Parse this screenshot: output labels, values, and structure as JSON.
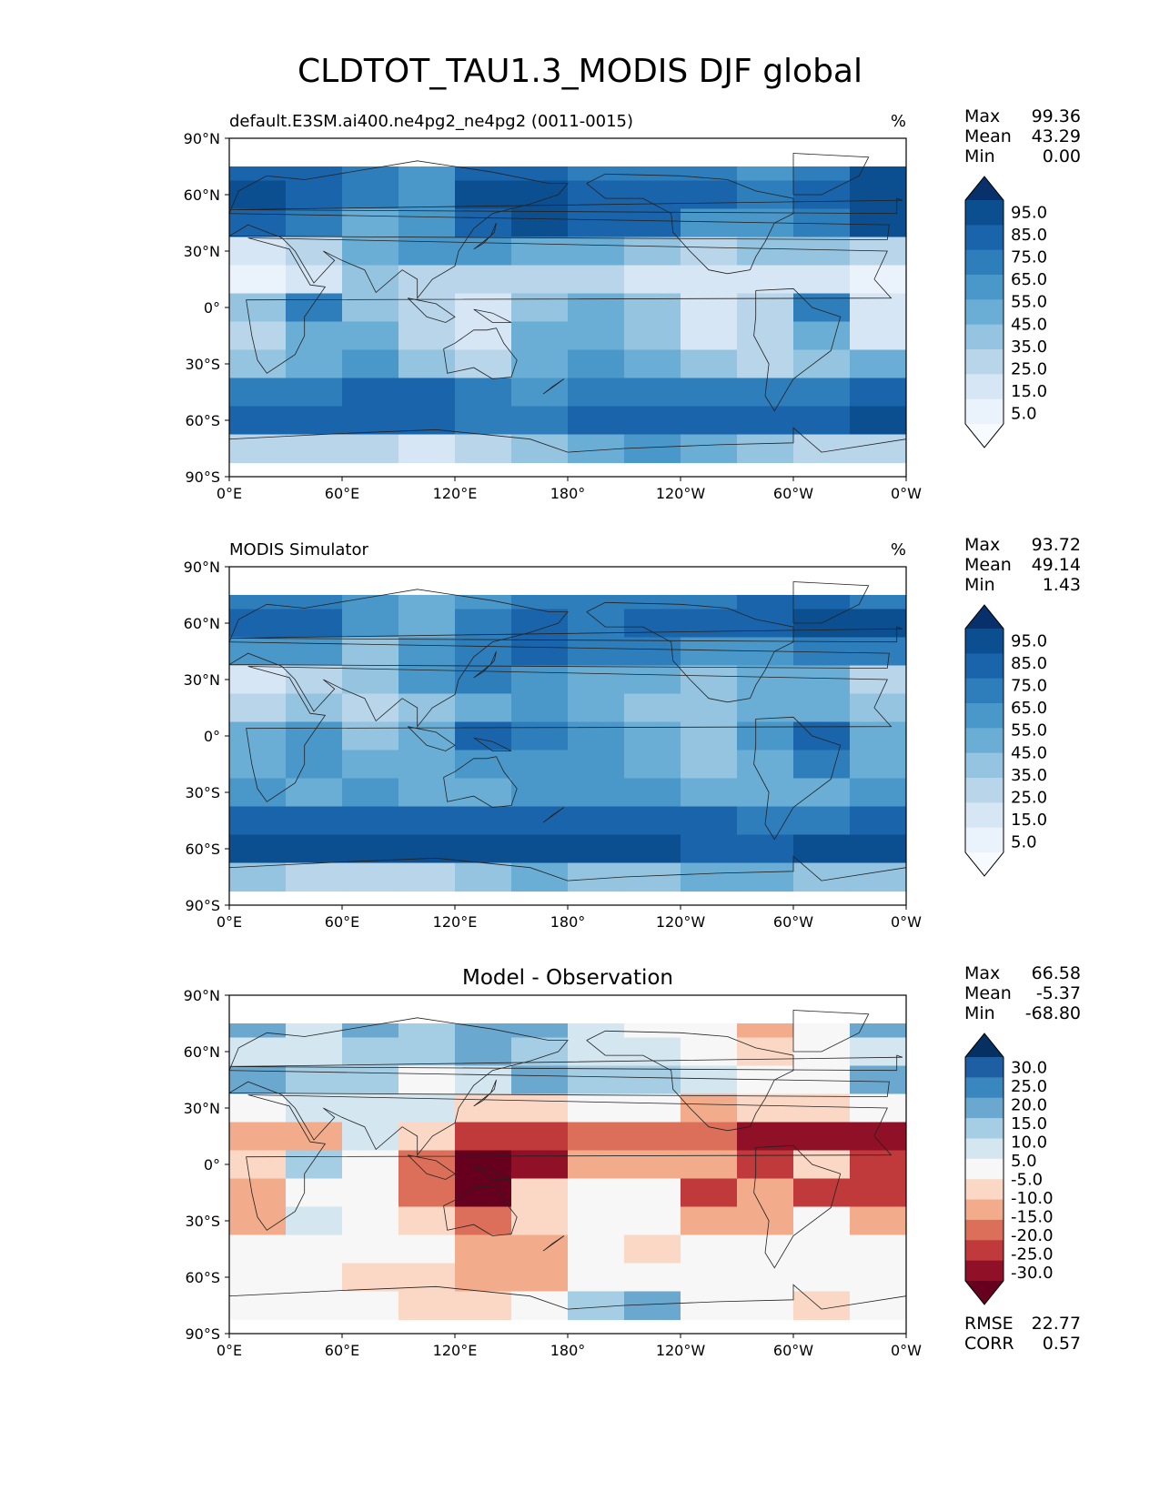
{
  "figure": {
    "title": "CLDTOT_TAU1.3_MODIS DJF global"
  },
  "panels": [
    {
      "id": "model",
      "title_left": "default.E3SM.ai400.ne4pg2_ne4pg2 (0011-0015)",
      "title_center": "",
      "units": "%",
      "stats": [
        {
          "label": "Max",
          "value": "99.36"
        },
        {
          "label": "Mean",
          "value": "43.29"
        },
        {
          "label": "Min",
          "value": "0.00"
        }
      ],
      "colorbar": {
        "levels": [
          "95.0",
          "85.0",
          "75.0",
          "65.0",
          "55.0",
          "45.0",
          "35.0",
          "25.0",
          "15.0",
          "5.0"
        ],
        "colors": [
          "#08306b",
          "#0b4f91",
          "#1a64ab",
          "#2f7ebc",
          "#4a98c9",
          "#6aaed6",
          "#94c4df",
          "#b8d5ea",
          "#d6e6f4",
          "#eaf2fb",
          "#f7fbff"
        ]
      }
    },
    {
      "id": "obs",
      "title_left": "MODIS Simulator",
      "title_center": "",
      "units": "%",
      "stats": [
        {
          "label": "Max",
          "value": "93.72"
        },
        {
          "label": "Mean",
          "value": "49.14"
        },
        {
          "label": "Min",
          "value": "1.43"
        }
      ],
      "colorbar": {
        "levels": [
          "95.0",
          "85.0",
          "75.0",
          "65.0",
          "55.0",
          "45.0",
          "35.0",
          "25.0",
          "15.0",
          "5.0"
        ],
        "colors": [
          "#08306b",
          "#0b4f91",
          "#1a64ab",
          "#2f7ebc",
          "#4a98c9",
          "#6aaed6",
          "#94c4df",
          "#b8d5ea",
          "#d6e6f4",
          "#eaf2fb",
          "#f7fbff"
        ]
      }
    },
    {
      "id": "diff",
      "title_left": "",
      "title_center": "Model - Observation",
      "units": "",
      "stats": [
        {
          "label": "Max",
          "value": "66.58"
        },
        {
          "label": "Mean",
          "value": "-5.37"
        },
        {
          "label": "Min",
          "value": "-68.80"
        }
      ],
      "colorbar": {
        "levels": [
          "30.0",
          "25.0",
          "20.0",
          "15.0",
          "10.0",
          "5.0",
          "-5.0",
          "-10.0",
          "-15.0",
          "-20.0",
          "-25.0",
          "-30.0"
        ],
        "colors": [
          "#053061",
          "#1d5fa2",
          "#3a87bf",
          "#6aa8d0",
          "#a5cde3",
          "#d4e6f0",
          "#f7f7f7",
          "#fbd8c6",
          "#f3ac8b",
          "#dc6f5a",
          "#c0393b",
          "#8f1027",
          "#67001f"
        ]
      },
      "metrics": [
        {
          "label": "RMSE",
          "value": "22.77"
        },
        {
          "label": "CORR",
          "value": "0.57"
        }
      ]
    }
  ],
  "axes": {
    "xticks": [
      "0°E",
      "60°E",
      "120°E",
      "180°",
      "120°W",
      "60°W",
      "0°W"
    ],
    "yticks": [
      "90°N",
      "60°N",
      "30°N",
      "0°",
      "30°S",
      "60°S",
      "90°S"
    ]
  },
  "chart_data": [
    {
      "type": "heatmap",
      "title": "default.E3SM.ai400.ne4pg2_ne4pg2 (0011-0015)",
      "units": "%",
      "xlim": [
        0,
        360
      ],
      "ylim": [
        -90,
        90
      ],
      "levels": [
        5,
        15,
        25,
        35,
        45,
        55,
        65,
        75,
        85,
        95
      ],
      "lat": [
        75,
        60,
        45,
        30,
        15,
        0,
        -15,
        -30,
        -45,
        -60,
        -75
      ],
      "lon": [
        0,
        30,
        60,
        90,
        120,
        150,
        180,
        210,
        240,
        270,
        300,
        330
      ],
      "values": [
        [
          80,
          75,
          70,
          60,
          75,
          80,
          70,
          70,
          65,
          60,
          70,
          85
        ],
        [
          85,
          80,
          65,
          55,
          85,
          85,
          75,
          80,
          75,
          70,
          80,
          90
        ],
        [
          75,
          65,
          50,
          55,
          75,
          90,
          80,
          75,
          60,
          55,
          70,
          85
        ],
        [
          20,
          30,
          45,
          60,
          55,
          45,
          45,
          40,
          25,
          35,
          40,
          30
        ],
        [
          10,
          20,
          35,
          30,
          25,
          30,
          25,
          20,
          15,
          20,
          20,
          10
        ],
        [
          40,
          70,
          40,
          25,
          20,
          40,
          45,
          35,
          20,
          30,
          65,
          20
        ],
        [
          30,
          50,
          45,
          30,
          20,
          45,
          50,
          40,
          15,
          30,
          45,
          20
        ],
        [
          40,
          50,
          55,
          40,
          30,
          45,
          55,
          50,
          35,
          30,
          40,
          45
        ],
        [
          70,
          70,
          75,
          75,
          65,
          60,
          70,
          65,
          70,
          65,
          70,
          80
        ],
        [
          80,
          80,
          80,
          75,
          70,
          70,
          80,
          80,
          75,
          80,
          80,
          85
        ],
        [
          30,
          25,
          25,
          20,
          30,
          40,
          50,
          55,
          45,
          40,
          30,
          30
        ]
      ]
    },
    {
      "type": "heatmap",
      "title": "MODIS Simulator",
      "units": "%",
      "xlim": [
        0,
        360
      ],
      "ylim": [
        -90,
        90
      ],
      "levels": [
        5,
        15,
        25,
        35,
        45,
        55,
        65,
        75,
        85,
        95
      ],
      "lat": [
        75,
        60,
        45,
        30,
        15,
        0,
        -15,
        -30,
        -45,
        -60,
        -75
      ],
      "lon": [
        0,
        30,
        60,
        90,
        120,
        150,
        180,
        210,
        240,
        270,
        300,
        330
      ],
      "values": [
        [
          65,
          70,
          55,
          50,
          60,
          65,
          65,
          70,
          70,
          75,
          75,
          70
        ],
        [
          80,
          75,
          55,
          45,
          70,
          75,
          70,
          75,
          80,
          80,
          85,
          85
        ],
        [
          60,
          55,
          40,
          60,
          70,
          75,
          70,
          65,
          55,
          60,
          70,
          70
        ],
        [
          20,
          25,
          40,
          55,
          65,
          55,
          45,
          45,
          40,
          45,
          50,
          30
        ],
        [
          25,
          35,
          30,
          40,
          50,
          55,
          45,
          40,
          35,
          50,
          50,
          40
        ],
        [
          45,
          60,
          40,
          45,
          80,
          70,
          60,
          50,
          35,
          55,
          75,
          45
        ],
        [
          45,
          55,
          50,
          50,
          55,
          55,
          55,
          45,
          40,
          45,
          70,
          45
        ],
        [
          55,
          45,
          55,
          50,
          50,
          55,
          55,
          55,
          50,
          45,
          45,
          60
        ],
        [
          75,
          75,
          80,
          80,
          80,
          75,
          75,
          75,
          75,
          70,
          70,
          80
        ],
        [
          85,
          85,
          90,
          85,
          85,
          85,
          85,
          85,
          80,
          80,
          85,
          90
        ],
        [
          35,
          30,
          25,
          30,
          40,
          45,
          40,
          40,
          45,
          45,
          40,
          35
        ]
      ]
    },
    {
      "type": "heatmap",
      "title": "Model - Observation",
      "units": "",
      "xlim": [
        0,
        360
      ],
      "ylim": [
        -90,
        90
      ],
      "levels": [
        -30,
        -25,
        -20,
        -15,
        -10,
        -5,
        5,
        10,
        15,
        20,
        25,
        30
      ],
      "lat": [
        75,
        60,
        45,
        30,
        15,
        0,
        -15,
        -30,
        -45,
        -60,
        -75
      ],
      "lon": [
        0,
        30,
        60,
        90,
        120,
        150,
        180,
        210,
        240,
        270,
        300,
        330
      ],
      "values": [
        [
          15,
          5,
          15,
          10,
          15,
          15,
          5,
          0,
          -5,
          -15,
          -5,
          15
        ],
        [
          5,
          5,
          10,
          10,
          15,
          10,
          5,
          5,
          -5,
          -10,
          -5,
          5
        ],
        [
          15,
          10,
          10,
          -5,
          5,
          15,
          10,
          10,
          5,
          -5,
          0,
          15
        ],
        [
          0,
          5,
          5,
          5,
          -10,
          -10,
          0,
          -5,
          -15,
          -10,
          -10,
          0
        ],
        [
          -15,
          -15,
          5,
          -10,
          -25,
          -25,
          -20,
          -20,
          -20,
          -30,
          -30,
          -30
        ],
        [
          -10,
          10,
          0,
          -20,
          -60,
          -30,
          -15,
          -15,
          -15,
          -25,
          -10,
          -25
        ],
        [
          -15,
          -5,
          -5,
          -20,
          -35,
          -10,
          -5,
          -5,
          -25,
          -15,
          -25,
          -25
        ],
        [
          -15,
          5,
          0,
          -10,
          -20,
          -10,
          0,
          -5,
          -15,
          -15,
          -5,
          -15
        ],
        [
          -5,
          -5,
          -5,
          -5,
          -15,
          -15,
          -5,
          -10,
          -5,
          -5,
          0,
          0
        ],
        [
          -5,
          -5,
          -10,
          -10,
          -15,
          -15,
          -5,
          -5,
          -5,
          0,
          -5,
          -5
        ],
        [
          -5,
          -5,
          0,
          -10,
          -10,
          -5,
          10,
          15,
          0,
          -5,
          -10,
          -5
        ]
      ]
    }
  ]
}
